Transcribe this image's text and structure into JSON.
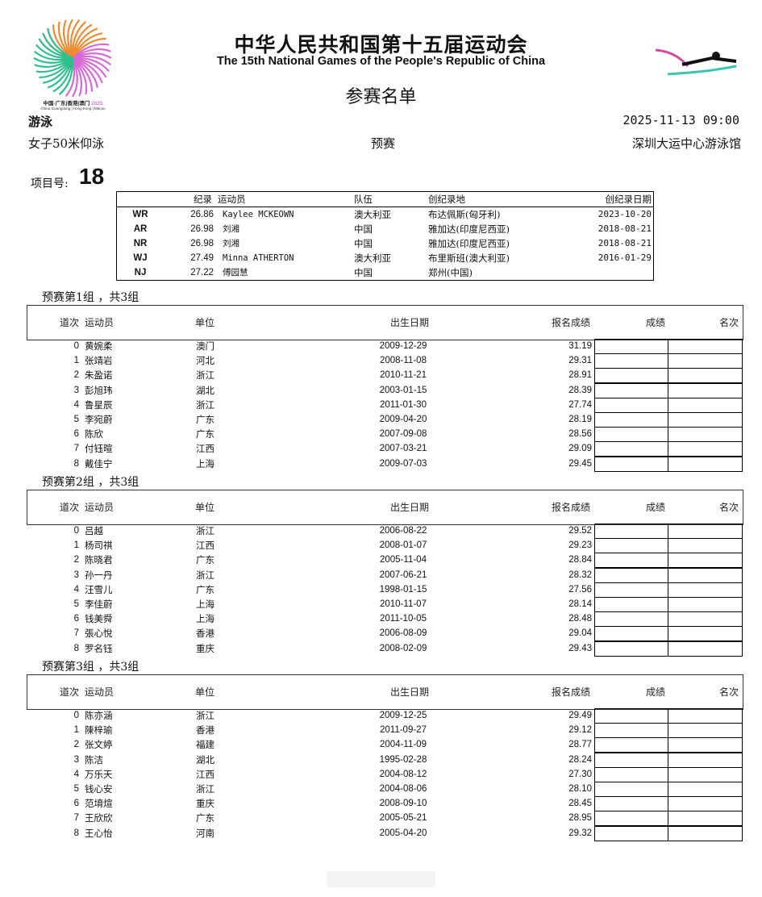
{
  "logo": {
    "text": "中国·广东|香港|澳门 2025",
    "subtext": "China·Guangdong | Hong Kong | Macao"
  },
  "header": {
    "title_cn": "中华人民共和国第十五届运动会",
    "title_en": "The 15th National Games of the People's Republic of China",
    "doc_title": "参赛名单",
    "sport": "游泳",
    "datetime": "2025-11-13 09:00",
    "event": "女子50米仰泳",
    "phase": "预赛",
    "venue": "深圳大运中心游泳馆",
    "event_no_label": "项目号:",
    "event_no": "18"
  },
  "records": {
    "headers": {
      "record": "纪录",
      "athlete": "运动员",
      "team": "队伍",
      "place": "创纪录地",
      "date": "创纪录日期"
    },
    "rows": [
      {
        "type": "WR",
        "time": "26.86",
        "athlete": "Kaylee MCKEOWN",
        "team": "澳大利亚",
        "place": "布达佩斯(匈牙利)",
        "date": "2023-10-20"
      },
      {
        "type": "AR",
        "time": "26.98",
        "athlete": "刘湘",
        "team": "中国",
        "place": "雅加达(印度尼西亚)",
        "date": "2018-08-21"
      },
      {
        "type": "NR",
        "time": "26.98",
        "athlete": "刘湘",
        "team": "中国",
        "place": "雅加达(印度尼西亚)",
        "date": "2018-08-21"
      },
      {
        "type": "WJ",
        "time": "27.49",
        "athlete": "Minna ATHERTON",
        "team": "澳大利亚",
        "place": "布里斯班(澳大利亚)",
        "date": "2016-01-29"
      },
      {
        "type": "NJ",
        "time": "27.22",
        "athlete": "傅园慧",
        "team": "中国",
        "place": "郑州(中国)",
        "date": ""
      }
    ]
  },
  "columns": {
    "lane": "道次",
    "athlete": "运动员",
    "unit": "单位",
    "birth": "出生日期",
    "entry": "报名成绩",
    "result": "成绩",
    "rank": "名次"
  },
  "groups": [
    {
      "title": "预赛第1组 ，共3组",
      "rows": [
        [
          "0",
          "黄婉柔",
          "澳门",
          "2009-12-29",
          "31.19"
        ],
        [
          "1",
          "张靖岩",
          "河北",
          "2008-11-08",
          "29.31"
        ],
        [
          "2",
          "朱盈诺",
          "浙江",
          "2010-11-21",
          "28.91"
        ],
        [
          "3",
          "彭旭玮",
          "湖北",
          "2003-01-15",
          "28.39"
        ],
        [
          "4",
          "鲁星辰",
          "浙江",
          "2011-01-30",
          "27.74"
        ],
        [
          "5",
          "李宛蔚",
          "广东",
          "2009-04-20",
          "28.19"
        ],
        [
          "6",
          "陈欣",
          "广东",
          "2007-09-08",
          "28.56"
        ],
        [
          "7",
          "付钰暄",
          "江西",
          "2007-03-21",
          "29.09"
        ],
        [
          "8",
          "戴佳宁",
          "上海",
          "2009-07-03",
          "29.45"
        ]
      ]
    },
    {
      "title": "预赛第2组 ，共3组",
      "rows": [
        [
          "0",
          "吕越",
          "浙江",
          "2006-08-22",
          "29.52"
        ],
        [
          "1",
          "杨司祺",
          "江西",
          "2008-01-07",
          "29.23"
        ],
        [
          "2",
          "陈晓君",
          "广东",
          "2005-11-04",
          "28.84"
        ],
        [
          "3",
          "孙一丹",
          "浙江",
          "2007-06-21",
          "28.32"
        ],
        [
          "4",
          "汪雪儿",
          "广东",
          "1998-01-15",
          "27.56"
        ],
        [
          "5",
          "李佳蔚",
          "上海",
          "2010-11-07",
          "28.14"
        ],
        [
          "6",
          "钱美舜",
          "上海",
          "2011-10-05",
          "28.48"
        ],
        [
          "7",
          "張心悅",
          "香港",
          "2006-08-09",
          "29.04"
        ],
        [
          "8",
          "罗名钰",
          "重庆",
          "2008-02-09",
          "29.43"
        ]
      ]
    },
    {
      "title": "预赛第3组 ，共3组",
      "rows": [
        [
          "0",
          "陈亦涵",
          "浙江",
          "2009-12-25",
          "29.49"
        ],
        [
          "1",
          "陳梓瑜",
          "香港",
          "2011-09-27",
          "29.12"
        ],
        [
          "2",
          "张文婷",
          "福建",
          "2004-11-09",
          "28.77"
        ],
        [
          "3",
          "陈洁",
          "湖北",
          "1995-02-28",
          "28.24"
        ],
        [
          "4",
          "万乐天",
          "江西",
          "2004-08-12",
          "27.30"
        ],
        [
          "5",
          "钱心安",
          "浙江",
          "2004-08-06",
          "28.10"
        ],
        [
          "6",
          "范堉煊",
          "重庆",
          "2008-09-10",
          "28.45"
        ],
        [
          "7",
          "王欣欣",
          "广东",
          "2005-05-21",
          "28.95"
        ],
        [
          "8",
          "王心怡",
          "河南",
          "2005-04-20",
          "29.32"
        ]
      ]
    }
  ]
}
